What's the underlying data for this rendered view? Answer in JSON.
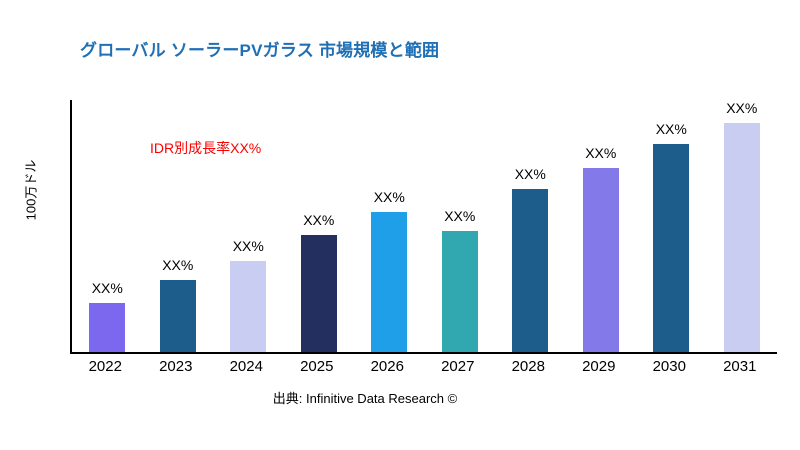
{
  "title": "グローバル ソーラーPVガラス 市場規模と範囲",
  "annotation": "IDR別成長率XX%",
  "ylabel": "100万ドル",
  "source": "出典: Infinitive Data Research ©",
  "chart_data": {
    "type": "bar",
    "title": "グローバル ソーラーPVガラス 市場規模と範囲",
    "categories": [
      "2022",
      "2023",
      "2024",
      "2025",
      "2026",
      "2027",
      "2028",
      "2029",
      "2030",
      "2031"
    ],
    "values": [
      21,
      31,
      39,
      50,
      60,
      52,
      70,
      79,
      89,
      100
    ],
    "bar_label": "XX%",
    "colors": [
      "#7b68ee",
      "#1d5d8c",
      "#c9cdf2",
      "#232f5e",
      "#1f9fe8",
      "#31a8b0",
      "#1d5d8c",
      "#8379e9",
      "#1d5d8c",
      "#c9cdf2"
    ],
    "xlabel": "",
    "ylabel": "100万ドル",
    "ylim": [
      0,
      108
    ],
    "annotation": "IDR別成長率XX%",
    "legend": false,
    "grid": false,
    "source": "出典: Infinitive Data Research ©"
  }
}
